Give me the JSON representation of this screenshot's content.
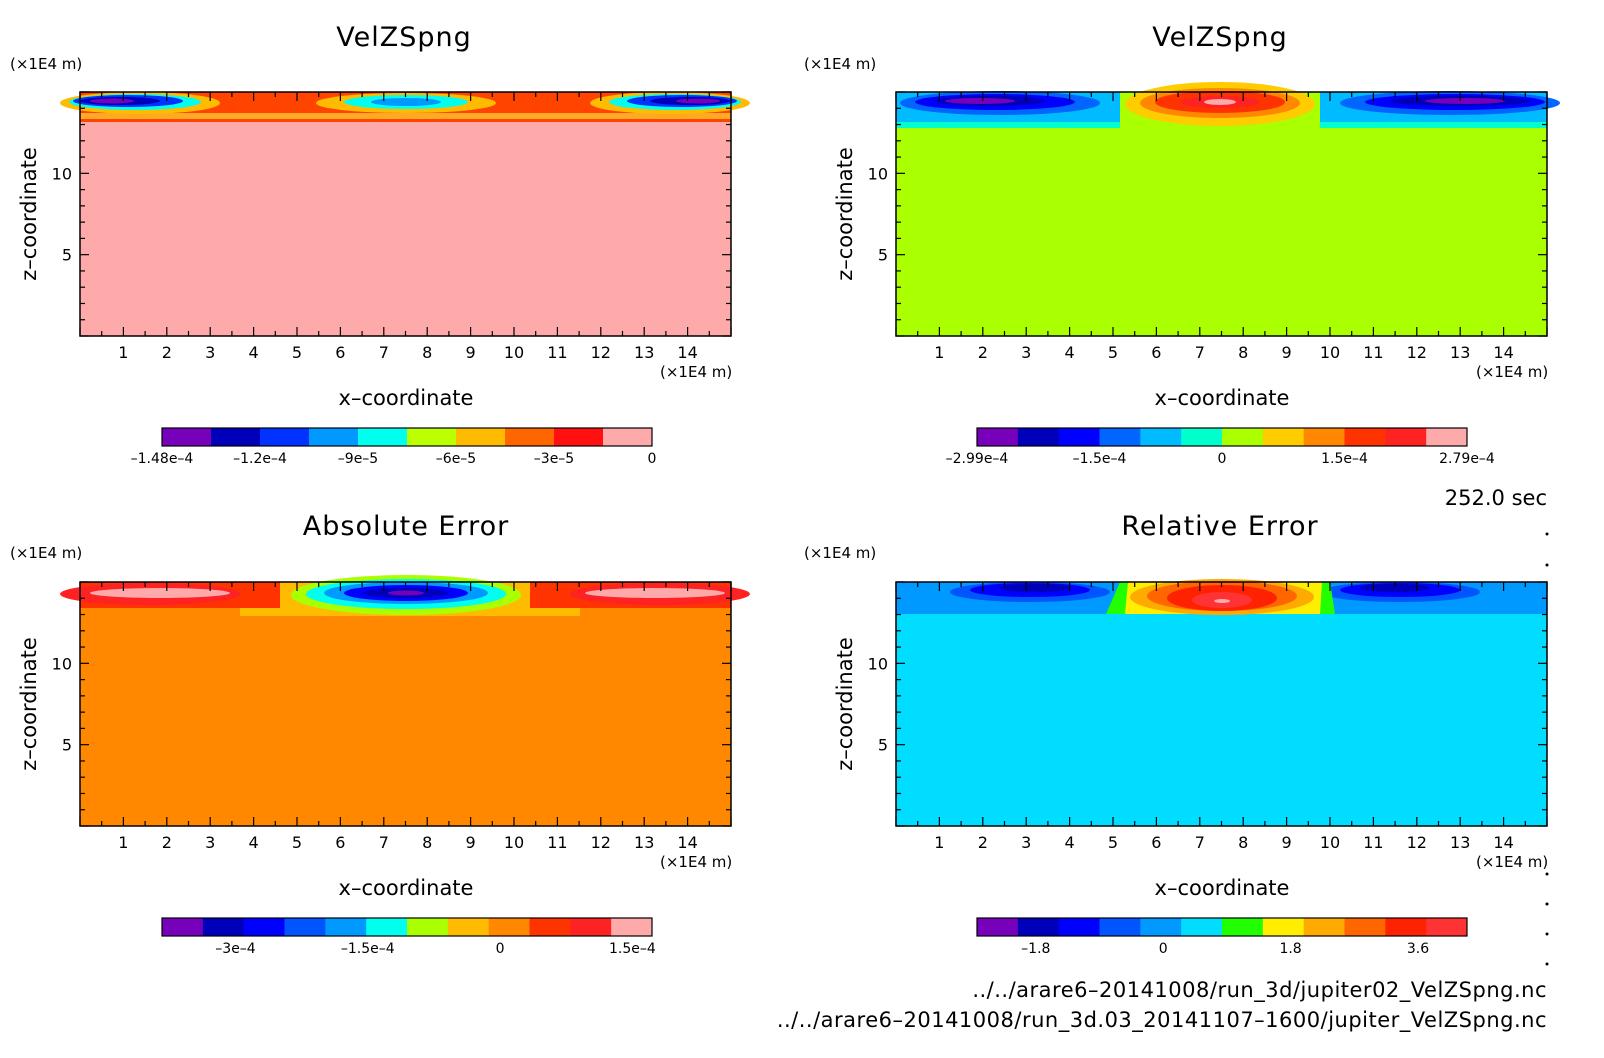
{
  "panels": [
    {
      "id": "velzspng-1",
      "title": "VelZSpng",
      "z_unit": "(×1E4 m)",
      "x_unit": "(×1E4 m)",
      "xlabel": "x–coordinate",
      "ylabel": "z–coordinate",
      "background": "#ffaaaa",
      "colorbar": {
        "colors": [
          "#7700bb",
          "#0000bb",
          "#0033ff",
          "#0099ff",
          "#00ffee",
          "#bbff00",
          "#ffbb00",
          "#ff6600",
          "#ff1111",
          "#ffaaaa"
        ],
        "labels": [
          "–1.48e–4",
          "–1.2e–4",
          "–9e–5",
          "–6e–5",
          "–3e–5",
          "0"
        ]
      }
    },
    {
      "id": "velzspng-2",
      "title": "VelZSpng",
      "z_unit": "(×1E4 m)",
      "x_unit": "(×1E4 m)",
      "xlabel": "x–coordinate",
      "ylabel": "z–coordinate",
      "background": "#aaff00",
      "colorbar": {
        "colors": [
          "#7700bb",
          "#0000bb",
          "#0000ff",
          "#0066ff",
          "#00bbff",
          "#00ffcc",
          "#aaff00",
          "#ffcc00",
          "#ff8800",
          "#ff3300",
          "#ff2222",
          "#ffaaaa"
        ],
        "labels": [
          "–2.99e–4",
          "–1.5e–4",
          "0",
          "1.5e–4",
          "2.79e–4"
        ]
      }
    },
    {
      "id": "absolute-error",
      "title": "Absolute Error",
      "z_unit": "(×1E4 m)",
      "x_unit": "(×1E4 m)",
      "xlabel": "x–coordinate",
      "ylabel": "z–coordinate",
      "background": "#ff8800",
      "colorbar": {
        "colors": [
          "#7700bb",
          "#0000bb",
          "#0000ff",
          "#0055ff",
          "#0099ff",
          "#00ffee",
          "#aaff00",
          "#ffbb00",
          "#ff8800",
          "#ff3300",
          "#ff2222",
          "#ffaaaa"
        ],
        "labels": [
          "–3e–4",
          "–1.5e–4",
          "0",
          "1.5e–4"
        ]
      }
    },
    {
      "id": "relative-error",
      "title": "Relative Error",
      "z_unit": "(×1E4 m)",
      "x_unit": "(×1E4 m)",
      "xlabel": "x–coordinate",
      "ylabel": "z–coordinate",
      "background": "#00ddff",
      "colorbar": {
        "colors": [
          "#7700bb",
          "#0000bb",
          "#0000ff",
          "#0055ff",
          "#0099ff",
          "#00ddff",
          "#22ff00",
          "#ffee00",
          "#ffaa00",
          "#ff6600",
          "#ff2200",
          "#ff3333"
        ],
        "labels": [
          "–1.8",
          "0",
          "1.8",
          "3.6"
        ]
      }
    }
  ],
  "time_label": "252.0 sec",
  "footer": {
    "file1": "../../arare6–20141008/run_3d/jupiter02_VelZSpng.nc",
    "file2": "../../arare6–20141008/run_3d.03_20141107–1600/jupiter_VelZSpng.nc"
  },
  "chart_data": [
    {
      "type": "heatmap",
      "title": "VelZSpng",
      "xlabel": "x–coordinate",
      "ylabel": "z–coordinate",
      "x_unit": "(×1E4 m)",
      "z_unit": "(×1E4 m)",
      "xlim": [
        0,
        15
      ],
      "ylim": [
        0,
        15
      ],
      "x_ticks": [
        1,
        2,
        3,
        4,
        5,
        6,
        7,
        8,
        9,
        10,
        11,
        12,
        13,
        14
      ],
      "y_ticks": [
        5,
        10
      ],
      "colorbar_labels": [
        "–1.48e–4",
        "–1.2e–4",
        "–9e–5",
        "–6e–5",
        "–3e–5",
        "0"
      ],
      "background_value": 0,
      "features": [
        {
          "x": 2,
          "z": 14.5,
          "sign": "negative",
          "min": -0.000148
        },
        {
          "x": 7.5,
          "z": 14.5,
          "sign": "negative"
        },
        {
          "x": 13.5,
          "z": 14.5,
          "sign": "negative",
          "min": -0.000148
        }
      ]
    },
    {
      "type": "heatmap",
      "title": "VelZSpng",
      "xlabel": "x–coordinate",
      "ylabel": "z–coordinate",
      "x_unit": "(×1E4 m)",
      "z_unit": "(×1E4 m)",
      "xlim": [
        0,
        15
      ],
      "ylim": [
        0,
        15
      ],
      "x_ticks": [
        1,
        2,
        3,
        4,
        5,
        6,
        7,
        8,
        9,
        10,
        11,
        12,
        13,
        14
      ],
      "y_ticks": [
        5,
        10
      ],
      "colorbar_labels": [
        "–2.99e–4",
        "–1.5e–4",
        "0",
        "1.5e–4",
        "2.79e–4"
      ],
      "background_value": 0,
      "features": [
        {
          "x": 2.5,
          "z": 14.5,
          "sign": "negative",
          "min": -0.000299
        },
        {
          "x": 7.5,
          "z": 14.5,
          "sign": "positive",
          "max": 0.000279
        },
        {
          "x": 13,
          "z": 14.5,
          "sign": "negative",
          "min": -0.000299
        }
      ]
    },
    {
      "type": "heatmap",
      "title": "Absolute Error",
      "xlabel": "x–coordinate",
      "ylabel": "z–coordinate",
      "x_unit": "(×1E4 m)",
      "z_unit": "(×1E4 m)",
      "xlim": [
        0,
        15
      ],
      "ylim": [
        0,
        15
      ],
      "x_ticks": [
        1,
        2,
        3,
        4,
        5,
        6,
        7,
        8,
        9,
        10,
        11,
        12,
        13,
        14
      ],
      "y_ticks": [
        5,
        10
      ],
      "colorbar_labels": [
        "–3e–4",
        "–1.5e–4",
        "0",
        "1.5e–4"
      ],
      "background_value": 0,
      "features": [
        {
          "x": 2,
          "z": 14.5,
          "sign": "positive"
        },
        {
          "x": 7.5,
          "z": 14.5,
          "sign": "negative",
          "min": -0.00035
        },
        {
          "x": 13.5,
          "z": 14.5,
          "sign": "positive"
        }
      ]
    },
    {
      "type": "heatmap",
      "title": "Relative Error",
      "xlabel": "x–coordinate",
      "ylabel": "z–coordinate",
      "x_unit": "(×1E4 m)",
      "z_unit": "(×1E4 m)",
      "xlim": [
        0,
        15
      ],
      "ylim": [
        0,
        15
      ],
      "x_ticks": [
        1,
        2,
        3,
        4,
        5,
        6,
        7,
        8,
        9,
        10,
        11,
        12,
        13,
        14
      ],
      "y_ticks": [
        5,
        10
      ],
      "colorbar_labels": [
        "–1.8",
        "0",
        "1.8",
        "3.6"
      ],
      "background_value": 0,
      "features": [
        {
          "x": 2.5,
          "z": 14.5,
          "sign": "negative"
        },
        {
          "x": 7.5,
          "z": 14.5,
          "sign": "positive",
          "max": 4.5
        },
        {
          "x": 12.5,
          "z": 14.5,
          "sign": "negative"
        }
      ]
    }
  ]
}
